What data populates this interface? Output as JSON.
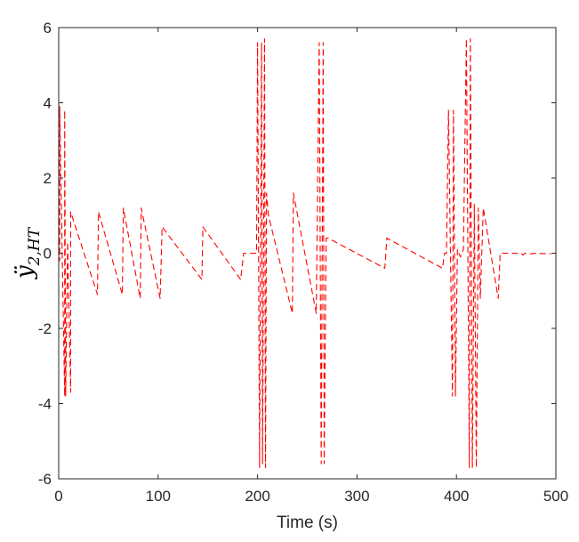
{
  "chart_data": {
    "type": "line",
    "title": "",
    "xlabel": "Time (s)",
    "ylabel": {
      "base": "ÿ",
      "subscript": "2,HT"
    },
    "xlim": [
      0,
      500
    ],
    "ylim": [
      -6,
      6
    ],
    "x_ticks": [
      0,
      100,
      200,
      300,
      400,
      500
    ],
    "x_tick_labels": [
      "0",
      "100",
      "200",
      "300",
      "400",
      "500"
    ],
    "y_ticks": [
      -6,
      -4,
      -2,
      0,
      2,
      4,
      6
    ],
    "y_tick_labels": [
      "-6",
      "-4",
      "-2",
      "0",
      "2",
      "4",
      "6"
    ],
    "grid": false,
    "legend": "none",
    "series": [
      {
        "color": "#ff0000",
        "line_style": "dashed",
        "x": [
          0,
          1,
          1,
          6,
          6,
          7,
          7,
          9,
          9,
          12,
          12,
          39,
          39,
          40,
          40,
          64,
          64,
          65,
          65,
          82,
          82,
          83,
          83,
          102,
          102,
          104,
          104,
          144,
          144,
          145,
          145,
          183,
          183,
          186,
          186,
          199,
          199,
          200,
          200,
          202,
          202,
          204,
          204,
          205,
          205,
          207,
          207,
          208,
          208,
          209,
          209,
          211,
          211,
          235,
          235,
          236,
          236,
          259,
          259,
          262,
          262,
          264,
          264,
          266,
          266,
          267,
          267,
          269,
          269,
          271,
          271,
          328,
          328,
          330,
          330,
          386,
          386,
          388,
          388,
          390,
          390,
          392,
          392,
          394,
          394,
          396,
          396,
          397,
          397,
          399,
          399,
          401,
          401,
          404,
          404,
          407,
          407,
          410,
          410,
          413,
          413,
          414,
          414,
          416,
          416,
          418,
          418,
          420,
          420,
          422,
          422,
          424,
          424,
          427,
          427,
          442,
          442,
          444,
          444,
          461,
          461,
          463,
          463,
          465,
          465,
          467,
          467,
          469,
          469,
          475,
          475,
          478,
          478,
          495
        ],
        "y": [
          3.8,
          -0.2,
          3.9,
          -3.8,
          3.8,
          -3.8,
          -3.8,
          0.3,
          0.3,
          -3.7,
          1.1,
          -1.1,
          -1.1,
          1.1,
          1.1,
          -1.1,
          -1.1,
          1.2,
          1.2,
          -1.2,
          -1.2,
          1.2,
          1.2,
          -1.2,
          -1.2,
          0.7,
          0.7,
          -0.7,
          -0.7,
          0.7,
          0.7,
          -0.7,
          -0.7,
          0.0,
          0.0,
          0.0,
          0.0,
          5.6,
          5.6,
          -5.7,
          -5.7,
          5.6,
          5.6,
          -5.6,
          -5.6,
          5.7,
          5.7,
          -5.7,
          -5.7,
          1.6,
          1.6,
          1.0,
          1.0,
          -1.6,
          -1.6,
          1.6,
          1.6,
          -1.6,
          -1.6,
          5.6,
          5.6,
          -5.6,
          -5.6,
          5.6,
          5.6,
          -5.6,
          -5.6,
          0.4,
          0.4,
          0.4,
          0.4,
          -0.4,
          -0.4,
          0.4,
          0.4,
          -0.4,
          -0.4,
          0.0,
          0.0,
          0.0,
          0.0,
          3.8,
          3.8,
          0.0,
          0.0,
          -3.8,
          -3.8,
          3.8,
          3.8,
          -3.8,
          -3.8,
          0.1,
          0.1,
          -0.1,
          -0.1,
          0.1,
          0.1,
          5.7,
          5.7,
          -5.7,
          -5.7,
          5.7,
          5.7,
          -5.7,
          -5.7,
          1.3,
          1.3,
          -5.7,
          -5.7,
          1.2,
          1.2,
          -1.2,
          -1.2,
          1.2,
          1.2,
          -1.2,
          -1.2,
          0.0,
          0.0,
          0.0,
          0.0,
          0.0,
          0.0,
          0.0,
          0.0,
          -0.05,
          -0.05,
          0.0,
          0.0,
          -0.02,
          -0.02,
          0.0,
          0.0,
          -0.02
        ]
      }
    ]
  }
}
